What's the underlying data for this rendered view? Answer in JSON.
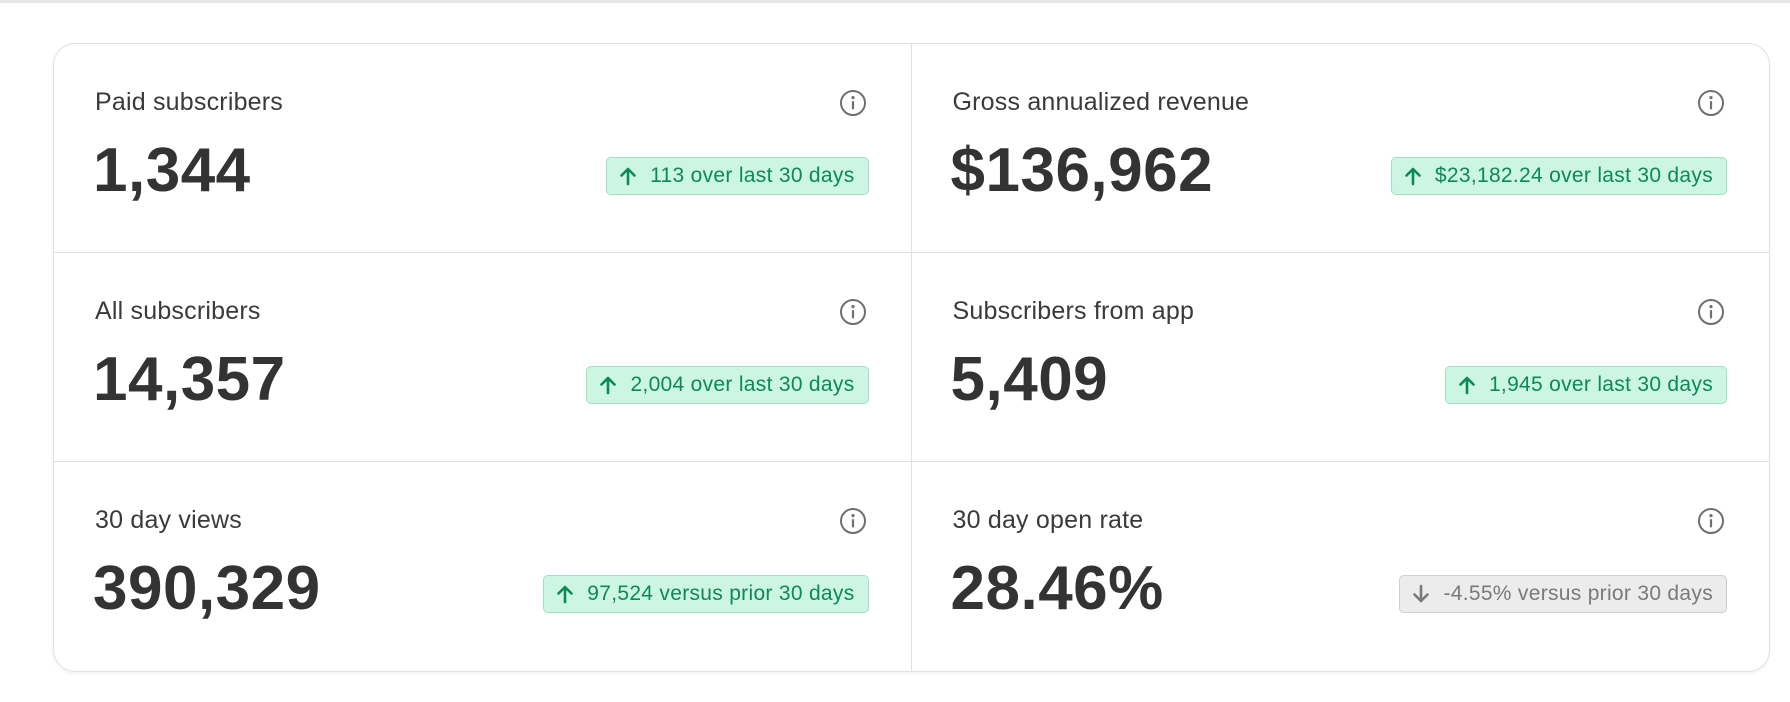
{
  "stats": [
    {
      "label": "Paid subscribers",
      "value": "1,344",
      "trend": "up",
      "change": "113 over last 30 days"
    },
    {
      "label": "Gross annualized revenue",
      "value": "$136,962",
      "trend": "up",
      "change": "$23,182.24 over last 30 days"
    },
    {
      "label": "All subscribers",
      "value": "14,357",
      "trend": "up",
      "change": "2,004 over last 30 days"
    },
    {
      "label": "Subscribers from app",
      "value": "5,409",
      "trend": "up",
      "change": "1,945 over last 30 days"
    },
    {
      "label": "30 day views",
      "value": "390,329",
      "trend": "up",
      "change": "97,524 versus prior 30 days"
    },
    {
      "label": "30 day open rate",
      "value": "28.46%",
      "trend": "down",
      "change": "-4.55% versus prior 30 days"
    }
  ],
  "icons": {
    "info": "info-circle-icon",
    "up": "arrow-up-icon",
    "down": "arrow-down-icon"
  },
  "colors": {
    "up_bg": "#cdf5e3",
    "up_text": "#0b8a55",
    "down_bg": "#ececec",
    "down_text": "#7a7a7a"
  }
}
